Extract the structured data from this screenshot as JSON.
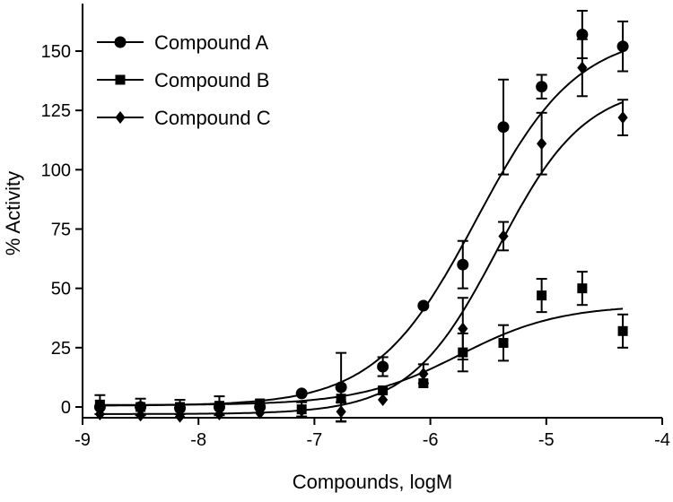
{
  "chart_data": {
    "type": "scatter",
    "xlabel": "Compounds, logM",
    "ylabel": "% Activity",
    "xlim": [
      -9,
      -4
    ],
    "ylim": [
      -5,
      165
    ],
    "xticks": [
      -9,
      -8,
      -7,
      -6,
      -5,
      -4
    ],
    "yticks": [
      0,
      25,
      50,
      75,
      100,
      125,
      150
    ],
    "grid": false,
    "legend_position": "top-left",
    "x": [
      -8.85,
      -8.5,
      -8.16,
      -7.82,
      -7.47,
      -7.11,
      -6.77,
      -6.41,
      -6.06,
      -5.72,
      -5.37,
      -5.04,
      -4.69,
      -4.34
    ],
    "series": [
      {
        "name": "Compound A",
        "marker": "circle",
        "values": [
          0,
          0,
          -0.5,
          0,
          0,
          5.7,
          8.3,
          17,
          42.7,
          60,
          118,
          135,
          157,
          152
        ],
        "errors": [
          0,
          0,
          0,
          0,
          0,
          0,
          14.5,
          4,
          0,
          10,
          20,
          5,
          10,
          10.5
        ],
        "fit": {
          "bottom": 0.5,
          "top": 158,
          "logEC50": -5.6,
          "hill": 1.0
        }
      },
      {
        "name": "Compound B",
        "marker": "square",
        "values": [
          1,
          0,
          0,
          0.5,
          1.5,
          -1,
          3.5,
          7,
          10,
          23,
          27,
          47,
          50,
          32
        ],
        "errors": [
          4,
          3.5,
          3,
          4,
          0,
          3,
          0,
          0,
          0,
          8,
          7.5,
          7,
          7,
          7
        ],
        "fit": {
          "bottom": 0.8,
          "top": 43,
          "logEC50": -5.75,
          "hill": 1.0
        }
      },
      {
        "name": "Compound C",
        "marker": "diamond",
        "values": [
          -3,
          -3.5,
          -4,
          -3,
          -2.5,
          -1.5,
          -2,
          3,
          14,
          33,
          72,
          111,
          143,
          122
        ],
        "errors": [
          0,
          0,
          0,
          0,
          0,
          0,
          4,
          0,
          4,
          13,
          6,
          13,
          12,
          7.5
        ],
        "fit": {
          "bottom": -3,
          "top": 136,
          "logEC50": -5.42,
          "hill": 1.15
        }
      }
    ]
  }
}
